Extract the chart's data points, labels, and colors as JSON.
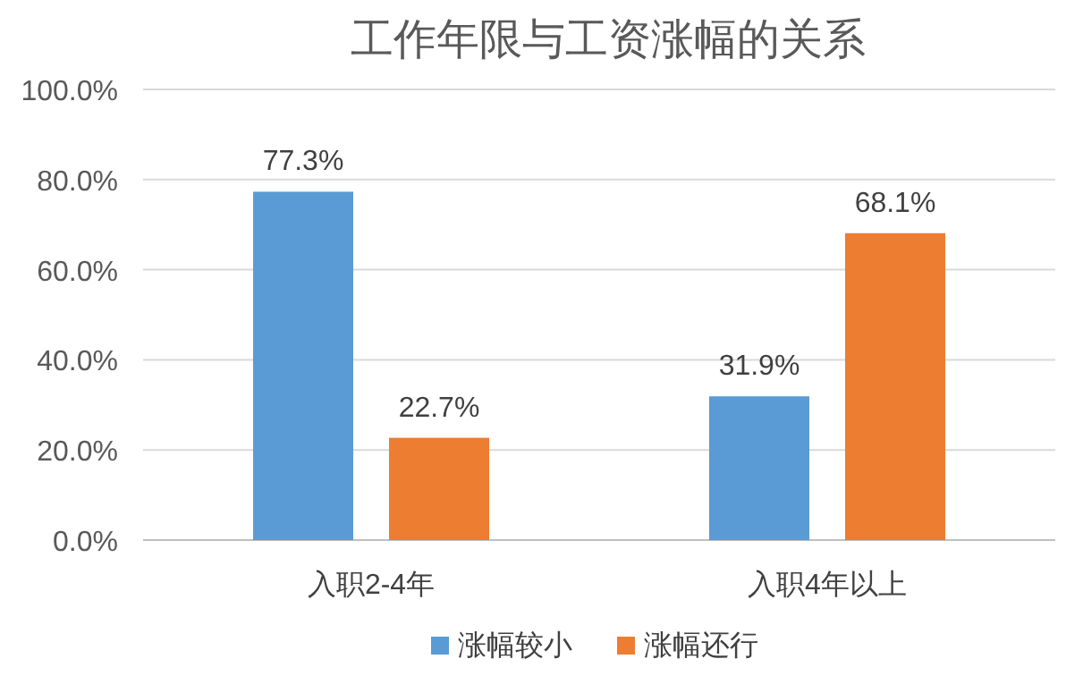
{
  "chart_data": {
    "type": "bar",
    "title": "工作年限与工资涨幅的关系",
    "categories": [
      "入职2-4年",
      "入职4年以上"
    ],
    "series": [
      {
        "name": "涨幅较小",
        "color": "#5b9bd5",
        "values": [
          77.3,
          31.9
        ],
        "value_labels": [
          "77.3%",
          "31.9%"
        ]
      },
      {
        "name": "涨幅还行",
        "color": "#ed7d31",
        "values": [
          22.7,
          68.1
        ],
        "value_labels": [
          "22.7%",
          "68.1%"
        ]
      }
    ],
    "ylim": [
      0,
      100
    ],
    "yticks": [
      {
        "value": 0,
        "label": "0.0%"
      },
      {
        "value": 20,
        "label": "20.0%"
      },
      {
        "value": 40,
        "label": "40.0%"
      },
      {
        "value": 60,
        "label": "60.0%"
      },
      {
        "value": 80,
        "label": "80.0%"
      },
      {
        "value": 100,
        "label": "100.0%"
      }
    ],
    "grid": "y",
    "legend": "bottom"
  }
}
